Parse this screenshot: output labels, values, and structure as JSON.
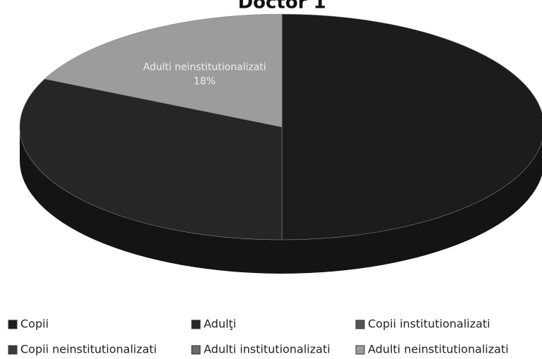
{
  "chart_data": {
    "type": "pie",
    "title": "Doctor 1",
    "categories": [
      "Copii",
      "Adulţi",
      "Copii institutionalizati",
      "Copii neinstitutionalizati",
      "Adulti institutionalizati",
      "Adulti neinstitutionalizati"
    ],
    "values": [
      50,
      32,
      0,
      0,
      0,
      18
    ],
    "value_labels": [
      null,
      null,
      null,
      null,
      null,
      "18%"
    ],
    "colors": [
      "#1c1c1c",
      "#262626",
      "#555555",
      "#3a3a3a",
      "#6a6a6a",
      "#9c9c9c"
    ]
  }
}
